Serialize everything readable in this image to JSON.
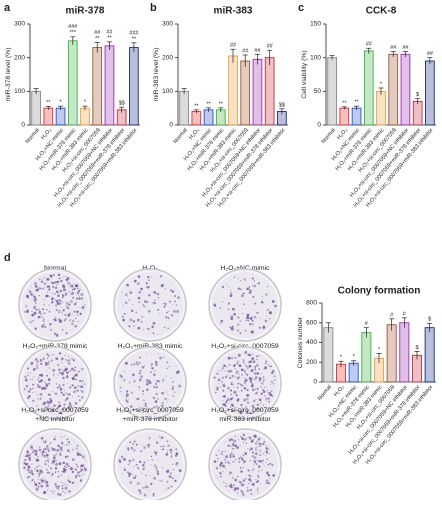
{
  "panels": [
    "a",
    "b",
    "c",
    "d"
  ],
  "dish_labels": [
    [
      "Normal"
    ],
    [
      "H₂O₂"
    ],
    [
      "H₂O₂+NC mimic"
    ],
    [
      "H₂O₂+miR-378 mimic"
    ],
    [
      "H₂O₂+miR-383 mimic"
    ],
    [
      "H₂O₂+si-circ_0007059"
    ],
    [
      "H₂O₂+si-circ_0007059",
      "+NC inhibitor"
    ],
    [
      "H₂O₂+si-circ_0007059",
      "+miR-378 inhibitor"
    ],
    [
      "H₂O₂+si-circ_0007059",
      "miR-383 inhibitor"
    ]
  ],
  "chart_data": [
    {
      "type": "bar",
      "title": "miR-378",
      "y_label": "miR-378 level (%)",
      "categories": [
        "Normal",
        "H₂O₂",
        "H₂O₂+NC mimic",
        "H₂O₂+miR-378 mimic",
        "H₂O₂+miR-383 mimic",
        "H₂O₂+si-circ_0007059",
        "H₂O₂+si-circ_0007059+NC inhibitor",
        "H₂O₂+si-circ_0007059+miR-378 inhibitor",
        "H₂O₂+si-circ_0007059+miR-383 inhibitor"
      ],
      "values": [
        100,
        50,
        50,
        250,
        50,
        230,
        235,
        45,
        230
      ],
      "errors": [
        8,
        5,
        6,
        12,
        6,
        15,
        12,
        8,
        14
      ],
      "colors": [
        "#888888",
        "#e03030",
        "#2a4fd0",
        "#3cb043",
        "#e8a040",
        "#a0522d",
        "#9b30b0",
        "#c03040",
        "#1a2a80"
      ],
      "annotations": [
        null,
        [
          "**"
        ],
        [
          "*"
        ],
        [
          "###",
          "***"
        ],
        [
          "*"
        ],
        [
          "##",
          "**"
        ],
        [
          "##",
          "**"
        ],
        [
          "$$"
        ],
        [
          "###",
          "**"
        ]
      ],
      "ylim": [
        0,
        300
      ],
      "yticks": [
        0,
        100,
        200,
        300
      ]
    },
    {
      "type": "bar",
      "title": "miR-383",
      "y_label": "miR-383 level (%)",
      "categories": [
        "Normal",
        "H₂O₂",
        "H₂O₂+NC mimic",
        "H₂O₂+miR-378 mimic",
        "H₂O₂+miR-383 mimic",
        "H₂O₂+si-circ_0007059",
        "H₂O₂+si-circ_0007059+NC inhibitor",
        "H₂O₂+si-circ_0007059+miR-378 inhibitor",
        "H₂O₂+si-circ_0007059+miR-383 inhibitor"
      ],
      "values": [
        100,
        40,
        45,
        45,
        205,
        190,
        195,
        200,
        40
      ],
      "errors": [
        8,
        5,
        6,
        6,
        20,
        18,
        15,
        22,
        8
      ],
      "colors": [
        "#888888",
        "#e03030",
        "#2a4fd0",
        "#3cb043",
        "#e8a040",
        "#a0522d",
        "#9b30b0",
        "#c03040",
        "#1a2a80"
      ],
      "annotations": [
        null,
        [
          "**"
        ],
        [
          "**"
        ],
        [
          "**"
        ],
        [
          "##"
        ],
        [
          "##"
        ],
        [
          "##"
        ],
        [
          "##"
        ],
        [
          "$$"
        ]
      ],
      "ylim": [
        0,
        300
      ],
      "yticks": [
        0,
        100,
        200,
        300
      ]
    },
    {
      "type": "bar",
      "title": "CCK-8",
      "y_label": "Cell viability (%)",
      "categories": [
        "Normal",
        "H₂O₂",
        "H₂O₂+NC mimic",
        "H₂O₂+miR-378 mimic",
        "H₂O₂+miR-383 mimic",
        "H₂O₂+si-circ_0007059",
        "H₂O₂+si-circ_0007059+NC inhibitor",
        "H₂O₂+si-circ_0007059+miR-378 inhibitor",
        "H₂O₂+si-circ_0007059+miR-383 inhibitor"
      ],
      "values": [
        100,
        25,
        25,
        110,
        50,
        105,
        105,
        35,
        95
      ],
      "errors": [
        3,
        2,
        3,
        4,
        5,
        4,
        4,
        4,
        5
      ],
      "colors": [
        "#888888",
        "#e03030",
        "#2a4fd0",
        "#3cb043",
        "#e8a040",
        "#a0522d",
        "#9b30b0",
        "#c03040",
        "#1a2a80"
      ],
      "annotations": [
        null,
        [
          "**"
        ],
        [
          "**"
        ],
        [
          "##"
        ],
        [
          "*"
        ],
        [
          "##"
        ],
        [
          "##"
        ],
        [
          "$"
        ],
        [
          "##"
        ]
      ],
      "ylim": [
        0,
        150
      ],
      "yticks": [
        0,
        50,
        100,
        150
      ]
    },
    {
      "type": "bar",
      "title": "Colony formation",
      "y_label": "Colonies number",
      "categories": [
        "Normal",
        "H₂O₂",
        "H₂O₂+NC mimic",
        "H₂O₂+miR-378 mimic",
        "H₂O₂+miR-383 mimic",
        "H₂O₂+si-circ_0007059",
        "H₂O₂+si-circ_0007059+NC inhibitor",
        "H₂O₂+si-circ_0007059+miR-378 inhibitor",
        "H₂O₂+si-circ_0007059+miR-383 inhibitor"
      ],
      "values": [
        550,
        180,
        190,
        500,
        240,
        580,
        600,
        270,
        550
      ],
      "errors": [
        50,
        30,
        25,
        50,
        50,
        60,
        50,
        40,
        45
      ],
      "colors": [
        "#888888",
        "#e03030",
        "#2a4fd0",
        "#3cb043",
        "#e8a040",
        "#a0522d",
        "#9b30b0",
        "#c03040",
        "#1a2a80"
      ],
      "annotations": [
        null,
        [
          "*"
        ],
        [
          "*"
        ],
        [
          "#"
        ],
        [
          "*"
        ],
        [
          "#"
        ],
        [
          "#"
        ],
        [
          "$"
        ],
        [
          "$"
        ]
      ],
      "ylim": [
        0,
        800
      ],
      "yticks": [
        0,
        200,
        400,
        600,
        800
      ]
    }
  ]
}
